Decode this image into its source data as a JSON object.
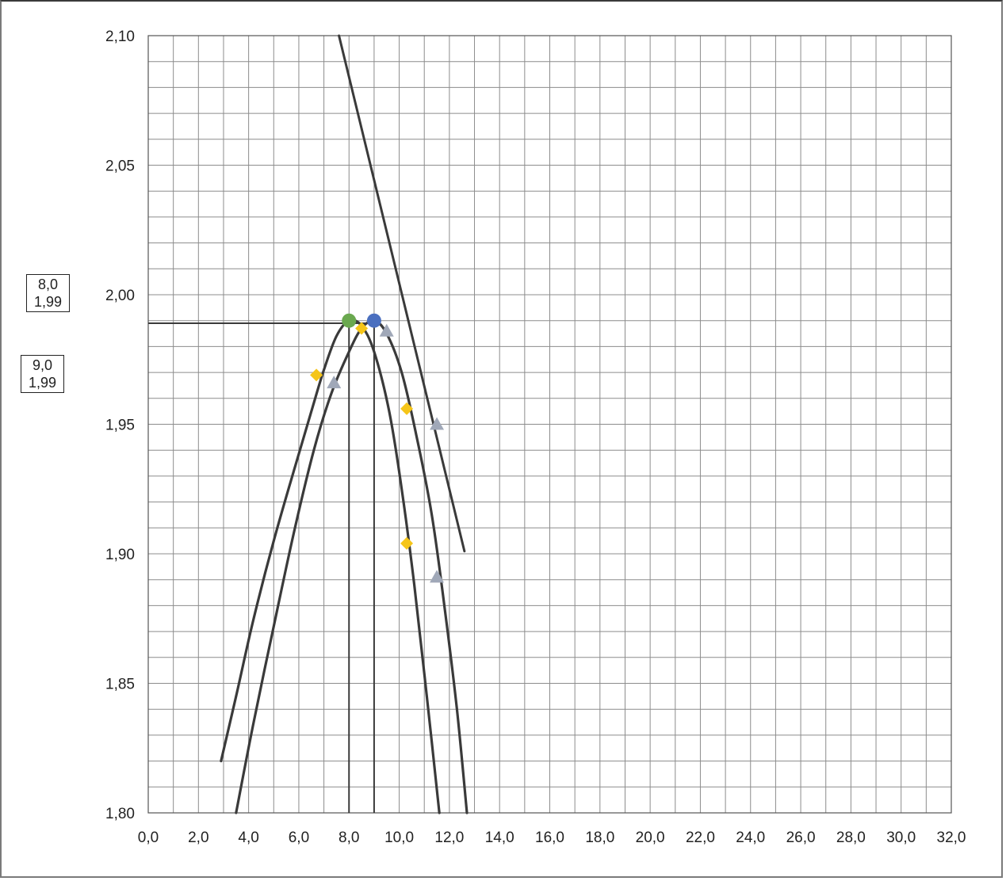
{
  "chart_data": {
    "type": "line",
    "title": "",
    "xlabel": "",
    "ylabel": "",
    "xlim": [
      0,
      32
    ],
    "ylim": [
      1.8,
      2.1
    ],
    "x_major_step": 2,
    "x_minor_step": 1,
    "y_major_step": 0.05,
    "y_minor_step": 0.01,
    "grid": true,
    "x_tick_labels": [
      "0,0",
      "2,0",
      "4,0",
      "6,0",
      "8,0",
      "10,0",
      "12,0",
      "14,0",
      "16,0",
      "18,0",
      "20,0",
      "22,0",
      "24,0",
      "26,0",
      "28,0",
      "30,0",
      "32,0"
    ],
    "y_tick_labels": [
      "1,80",
      "1,85",
      "1,90",
      "1,95",
      "2,00",
      "2,05",
      "2,10"
    ],
    "series": [
      {
        "kind": "curve",
        "color": "#3a3a3a",
        "points": [
          [
            2.9,
            1.82
          ],
          [
            3.5,
            1.845
          ],
          [
            4.2,
            1.875
          ],
          [
            5.0,
            1.905
          ],
          [
            5.8,
            1.932
          ],
          [
            6.5,
            1.955
          ],
          [
            7.0,
            1.971
          ],
          [
            7.5,
            1.984
          ],
          [
            8.0,
            1.99
          ],
          [
            8.5,
            1.988
          ],
          [
            9.0,
            1.978
          ],
          [
            9.6,
            1.955
          ],
          [
            10.1,
            1.925
          ],
          [
            10.6,
            1.888
          ],
          [
            11.1,
            1.845
          ],
          [
            11.6,
            1.8
          ]
        ]
      },
      {
        "kind": "curve",
        "color": "#3a3a3a",
        "points": [
          [
            3.5,
            1.8
          ],
          [
            4.2,
            1.835
          ],
          [
            5.0,
            1.872
          ],
          [
            5.8,
            1.908
          ],
          [
            6.6,
            1.94
          ],
          [
            7.3,
            1.962
          ],
          [
            8.0,
            1.978
          ],
          [
            8.5,
            1.987
          ],
          [
            9.0,
            1.99
          ],
          [
            9.5,
            1.985
          ],
          [
            10.1,
            1.97
          ],
          [
            10.7,
            1.945
          ],
          [
            11.3,
            1.915
          ],
          [
            11.8,
            1.88
          ],
          [
            12.3,
            1.84
          ],
          [
            12.7,
            1.8
          ]
        ]
      },
      {
        "kind": "line",
        "color": "#3a3a3a",
        "points": [
          [
            7.6,
            2.1
          ],
          [
            12.6,
            1.901
          ]
        ]
      },
      {
        "kind": "markers",
        "shape": "diamond",
        "color": "#f5c518",
        "points": [
          [
            6.7,
            1.969
          ],
          [
            8.5,
            1.987
          ],
          [
            10.3,
            1.956
          ],
          [
            10.3,
            1.904
          ]
        ]
      },
      {
        "kind": "markers",
        "shape": "triangle",
        "color": "#a0a8b8",
        "points": [
          [
            7.4,
            1.966
          ],
          [
            9.5,
            1.986
          ],
          [
            11.5,
            1.95
          ],
          [
            11.5,
            1.891
          ]
        ]
      },
      {
        "kind": "markers",
        "shape": "circle",
        "color": "#6aa84f",
        "points": [
          [
            8.0,
            1.99
          ]
        ]
      },
      {
        "kind": "markers",
        "shape": "circle",
        "color": "#4a6fbf",
        "points": [
          [
            9.0,
            1.99
          ]
        ]
      }
    ],
    "guides": {
      "hline": {
        "y": 1.989,
        "x_from": 0,
        "x_to": 9.0
      },
      "vlines": [
        {
          "x": 8.0,
          "y_from": 1.8,
          "y_to": 1.989
        },
        {
          "x": 9.0,
          "y_from": 1.8,
          "y_to": 1.989
        }
      ]
    }
  },
  "callouts": [
    {
      "x_text": "8,0",
      "y_text": "1,99"
    },
    {
      "x_text": "9,0",
      "y_text": "1,99"
    }
  ]
}
